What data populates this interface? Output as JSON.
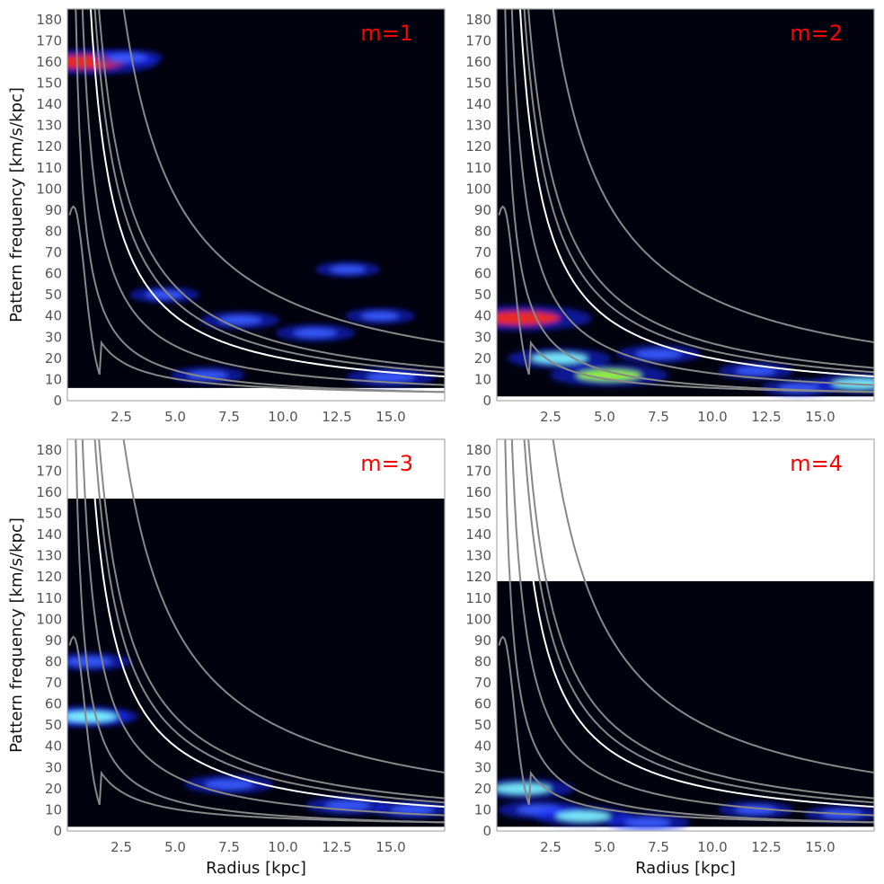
{
  "chart_data": [
    {
      "type": "heatmap",
      "panel_label": "m=1",
      "xlabel": "",
      "ylabel": "Pattern frequency [km/s/kpc]",
      "xlim": [
        0,
        17.5
      ],
      "ylim": [
        0,
        185
      ],
      "xticks": [
        "2.5",
        "5.0",
        "7.5",
        "10.0",
        "12.5",
        "15.0"
      ],
      "yticks": [
        "0",
        "10",
        "20",
        "30",
        "40",
        "50",
        "60",
        "70",
        "80",
        "90",
        "100",
        "110",
        "120",
        "130",
        "140",
        "150",
        "160",
        "170",
        "180"
      ],
      "data_ymin": 6,
      "data_ymax": 185,
      "hotspots": [
        {
          "r": 0.9,
          "f": 160,
          "strength": 1.0
        },
        {
          "r": 2.8,
          "f": 162,
          "strength": 0.25
        },
        {
          "r": 8.0,
          "f": 38,
          "strength": 0.35
        },
        {
          "r": 11.5,
          "f": 32,
          "strength": 0.35
        },
        {
          "r": 14.5,
          "f": 40,
          "strength": 0.25
        },
        {
          "r": 15.0,
          "f": 11,
          "strength": 0.45
        },
        {
          "r": 13.0,
          "f": 62,
          "strength": 0.2
        },
        {
          "r": 4.5,
          "f": 50,
          "strength": 0.25
        },
        {
          "r": 6.5,
          "f": 12,
          "strength": 0.3
        }
      ]
    },
    {
      "type": "heatmap",
      "panel_label": "m=2",
      "xlabel": "",
      "ylabel": "",
      "xlim": [
        0,
        17.5
      ],
      "ylim": [
        0,
        185
      ],
      "xticks": [
        "2.5",
        "5.0",
        "7.5",
        "10.0",
        "12.5",
        "15.0"
      ],
      "yticks": [
        "0",
        "10",
        "20",
        "30",
        "40",
        "50",
        "60",
        "70",
        "80",
        "90",
        "100",
        "110",
        "120",
        "130",
        "140",
        "150",
        "160",
        "170",
        "180"
      ],
      "data_ymin": 2,
      "data_ymax": 185,
      "hotspots": [
        {
          "r": 1.1,
          "f": 39,
          "strength": 1.0
        },
        {
          "r": 2.9,
          "f": 20,
          "strength": 0.6
        },
        {
          "r": 5.2,
          "f": 12,
          "strength": 0.75
        },
        {
          "r": 7.5,
          "f": 22,
          "strength": 0.4
        },
        {
          "r": 12.0,
          "f": 14,
          "strength": 0.3
        },
        {
          "r": 16.8,
          "f": 8,
          "strength": 0.55
        },
        {
          "r": 14.0,
          "f": 6,
          "strength": 0.3
        }
      ]
    },
    {
      "type": "heatmap",
      "panel_label": "m=3",
      "xlabel": "Radius [kpc]",
      "ylabel": "Pattern frequency [km/s/kpc]",
      "xlim": [
        0,
        17.5
      ],
      "ylim": [
        0,
        185
      ],
      "xticks": [
        "2.5",
        "5.0",
        "7.5",
        "10.0",
        "12.5",
        "15.0"
      ],
      "yticks": [
        "0",
        "10",
        "20",
        "30",
        "40",
        "50",
        "60",
        "70",
        "80",
        "90",
        "100",
        "110",
        "120",
        "130",
        "140",
        "150",
        "160",
        "170",
        "180"
      ],
      "data_ymin": 2,
      "data_ymax": 157,
      "hotspots": [
        {
          "r": 0.5,
          "f": 54,
          "strength": 0.6
        },
        {
          "r": 1.1,
          "f": 54,
          "strength": 0.5
        },
        {
          "r": 1.0,
          "f": 80,
          "strength": 0.4
        },
        {
          "r": 7.5,
          "f": 22,
          "strength": 0.45
        },
        {
          "r": 13.0,
          "f": 12,
          "strength": 0.4
        },
        {
          "r": 16.0,
          "f": 10,
          "strength": 0.35
        }
      ]
    },
    {
      "type": "heatmap",
      "panel_label": "m=4",
      "xlabel": "Radius [kpc]",
      "ylabel": "",
      "xlim": [
        0,
        17.5
      ],
      "ylim": [
        0,
        185
      ],
      "xticks": [
        "2.5",
        "5.0",
        "7.5",
        "10.0",
        "12.5",
        "15.0"
      ],
      "yticks": [
        "0",
        "10",
        "20",
        "30",
        "40",
        "50",
        "60",
        "70",
        "80",
        "90",
        "100",
        "110",
        "120",
        "130",
        "140",
        "150",
        "160",
        "170",
        "180"
      ],
      "data_ymin": 2,
      "data_ymax": 118,
      "hotspots": [
        {
          "r": 1.2,
          "f": 20,
          "strength": 0.6
        },
        {
          "r": 2.0,
          "f": 10,
          "strength": 0.4
        },
        {
          "r": 4.0,
          "f": 7,
          "strength": 0.55
        },
        {
          "r": 7.0,
          "f": 4,
          "strength": 0.4
        },
        {
          "r": 12.0,
          "f": 10,
          "strength": 0.3
        },
        {
          "r": 16.0,
          "f": 8,
          "strength": 0.3
        }
      ]
    }
  ],
  "colors": {
    "background": "#02020f",
    "corotation": "#ffffff",
    "resonance": "#888888",
    "panel_label": "#ff0000",
    "frame": "#aaaaaa"
  }
}
